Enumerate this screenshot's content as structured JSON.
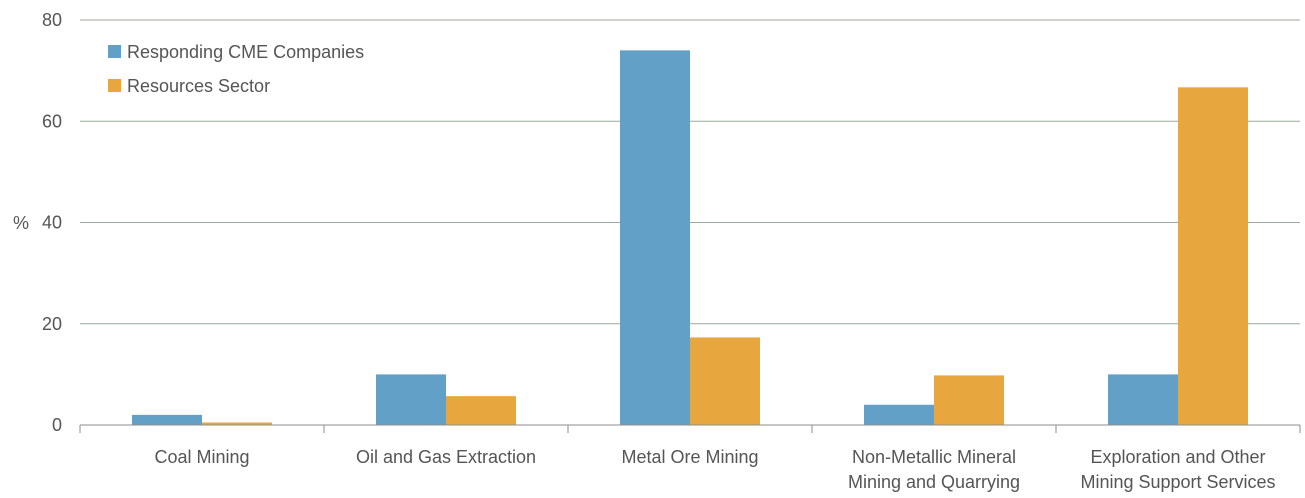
{
  "chart_data": {
    "type": "bar",
    "title": "",
    "xlabel": "",
    "ylabel": "%",
    "ylim": [
      0,
      80
    ],
    "yticks": [
      "0",
      "20",
      "40",
      "60",
      "80"
    ],
    "grid": true,
    "legend_position": "top-left",
    "categories": [
      [
        "Coal Mining"
      ],
      [
        "Oil and Gas Extraction"
      ],
      [
        "Metal Ore Mining"
      ],
      [
        "Non-Metallic Mineral",
        "Mining and Quarrying"
      ],
      [
        "Exploration and Other",
        "Mining Support Services"
      ]
    ],
    "series": [
      {
        "name": "Responding CME Companies",
        "color": "#63a0c8",
        "values": [
          2,
          10,
          74,
          4,
          10
        ]
      },
      {
        "name": "Resources Sector",
        "color": "#e7a73e",
        "values": [
          0.5,
          5.7,
          17.3,
          9.8,
          66.7
        ]
      }
    ]
  }
}
